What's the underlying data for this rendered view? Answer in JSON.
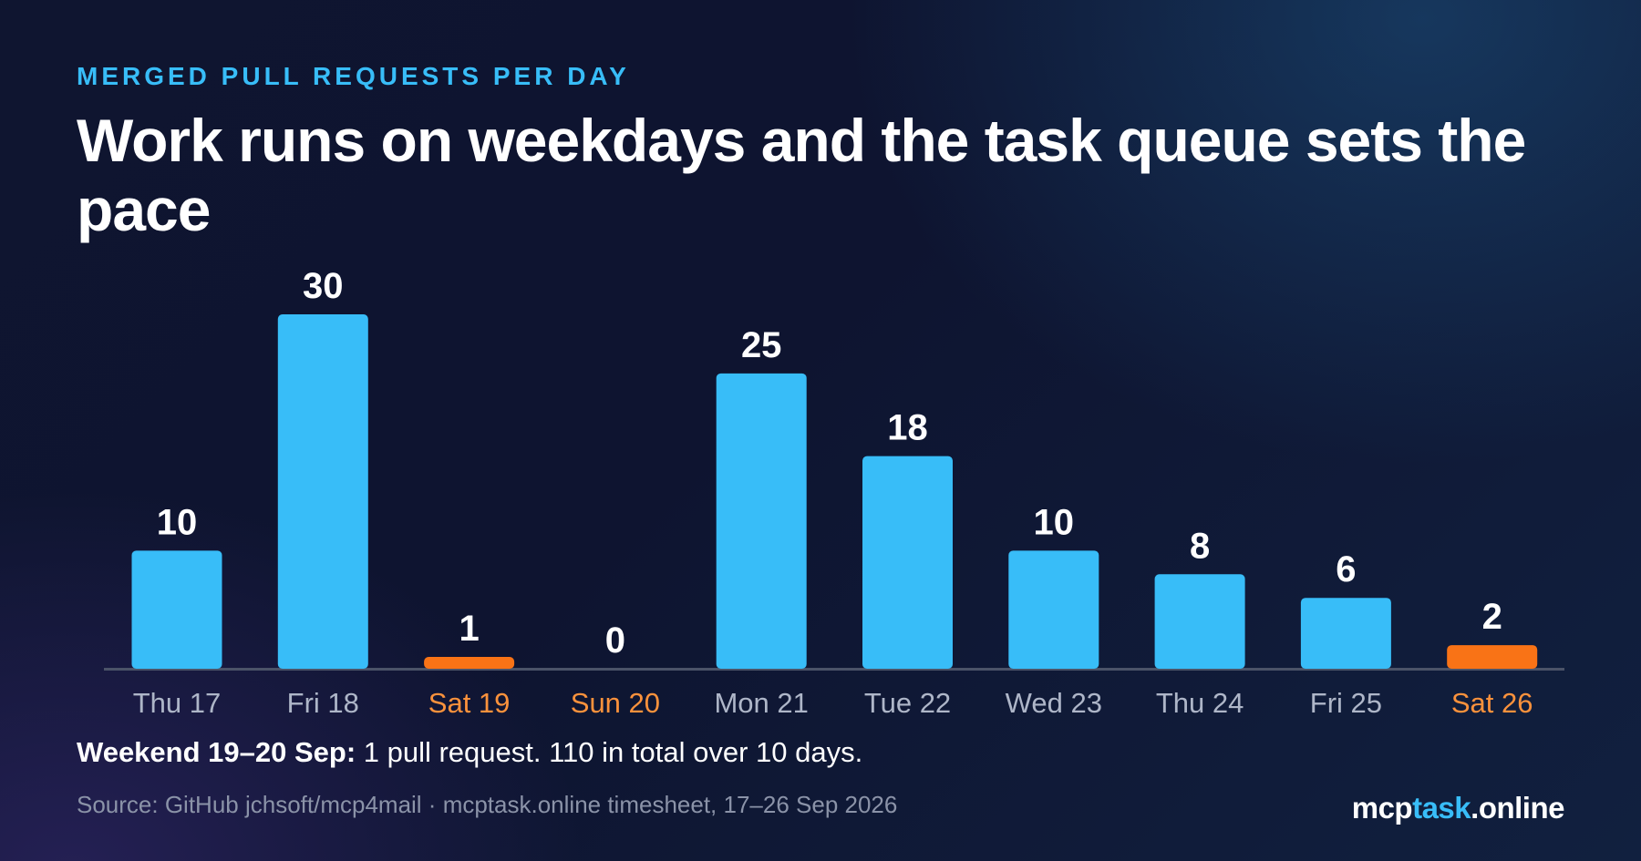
{
  "header": {
    "eyebrow": "MERGED PULL REQUESTS PER DAY",
    "title": "Work runs on weekdays and the task queue sets the pace"
  },
  "chart_data": {
    "type": "bar",
    "categories": [
      "Thu 17",
      "Fri 18",
      "Sat 19",
      "Sun 20",
      "Mon 21",
      "Tue 22",
      "Wed 23",
      "Thu 24",
      "Fri 25",
      "Sat 26"
    ],
    "values": [
      10,
      30,
      1,
      0,
      25,
      18,
      10,
      8,
      6,
      2
    ],
    "weekend": [
      false,
      false,
      true,
      true,
      false,
      false,
      false,
      false,
      false,
      true
    ],
    "ylim": [
      0,
      30
    ],
    "grid": false,
    "xlabel": "",
    "ylabel": "",
    "colors": {
      "weekday": "#38bdf8",
      "weekend": "#f97316",
      "weekday_label": "#aeb6c8",
      "weekend_label": "#fb923c",
      "baseline": "#4b5368"
    }
  },
  "footer": {
    "note_bold": "Weekend 19–20 Sep:",
    "note_text": " 1 pull request. 110 in total over 10 days.",
    "source": "Source: GitHub jchsoft/mcp4mail · mcptask.online timesheet, 17–26 Sep 2026",
    "brand_part1": "mcp",
    "brand_part2": "task",
    "brand_part3": ".online"
  }
}
